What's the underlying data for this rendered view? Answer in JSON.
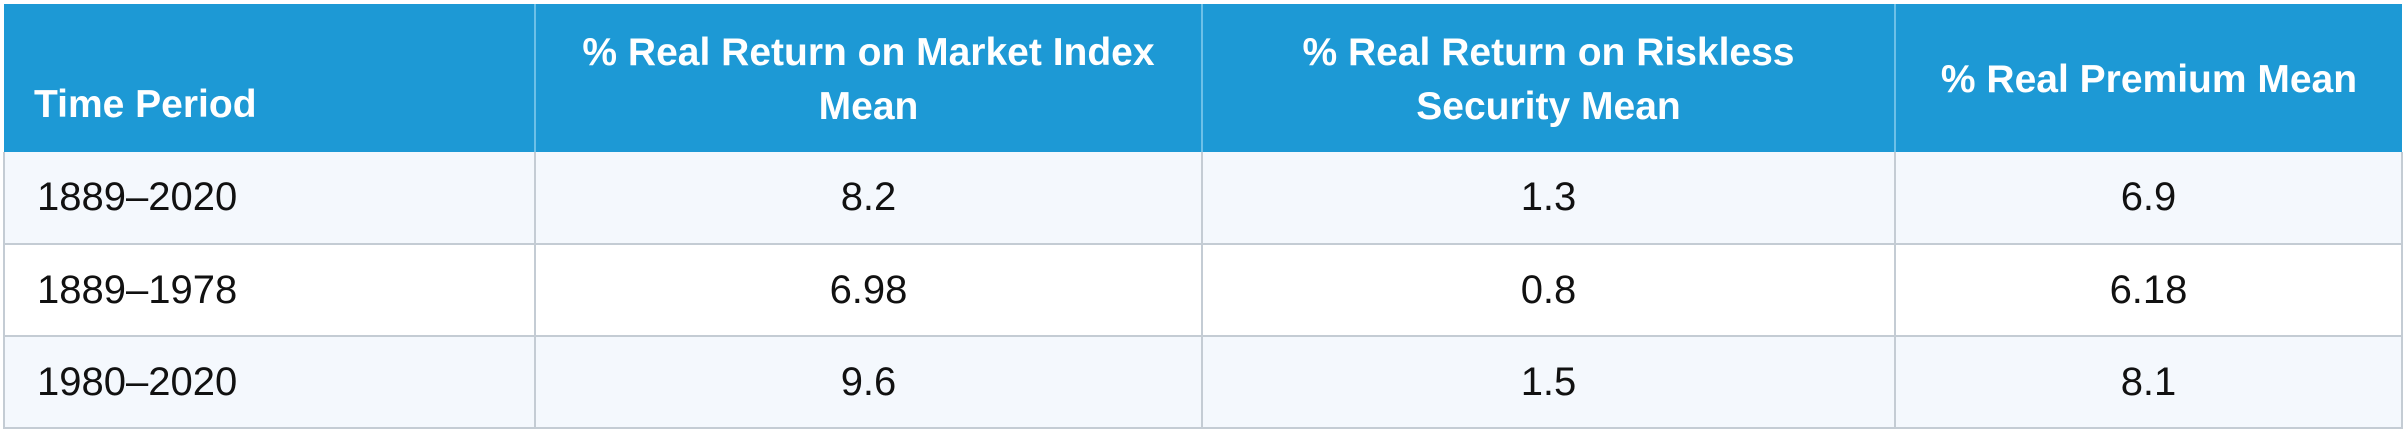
{
  "table": {
    "headers": [
      "Time Period",
      "% Real Return on Market Index Mean",
      "% Real Return on Riskless Security Mean",
      "% Real Premium Mean"
    ],
    "rows": [
      [
        "1889–2020",
        "8.2",
        "1.3",
        "6.9"
      ],
      [
        "1889–1978",
        "6.98",
        "0.8",
        "6.18"
      ],
      [
        "1980–2020",
        "9.6",
        "1.5",
        "8.1"
      ]
    ]
  },
  "colors": {
    "header_background": "#1d99d5",
    "header_text": "#ffffff",
    "row_odd_background": "#f4f8fd",
    "row_even_background": "#ffffff",
    "grid_line": "#c4ccd4"
  }
}
